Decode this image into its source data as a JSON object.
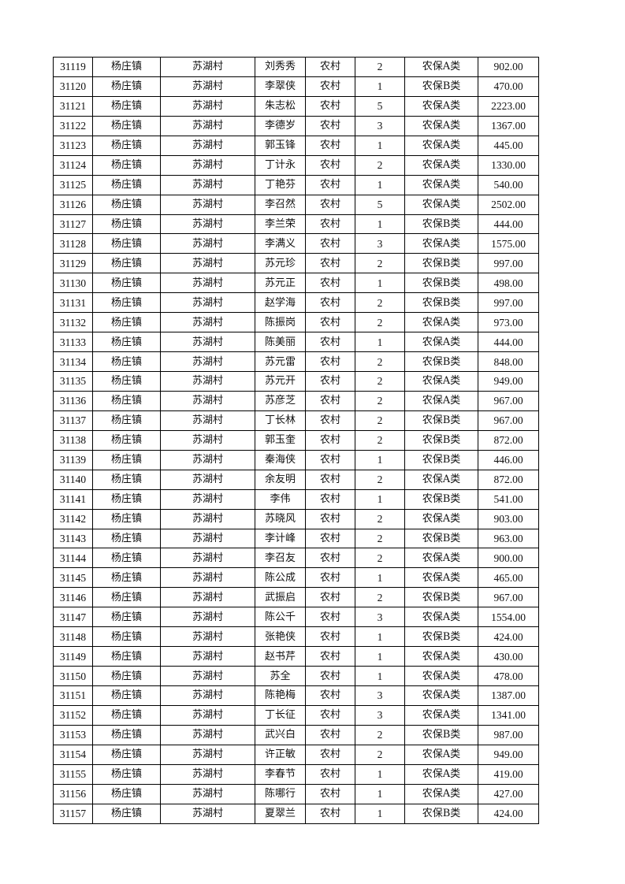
{
  "table": {
    "rows": [
      [
        "31119",
        "杨庄镇",
        "苏湖村",
        "刘秀秀",
        "农村",
        "2",
        "农保A类",
        "902.00"
      ],
      [
        "31120",
        "杨庄镇",
        "苏湖村",
        "李翠侠",
        "农村",
        "1",
        "农保B类",
        "470.00"
      ],
      [
        "31121",
        "杨庄镇",
        "苏湖村",
        "朱志松",
        "农村",
        "5",
        "农保A类",
        "2223.00"
      ],
      [
        "31122",
        "杨庄镇",
        "苏湖村",
        "李德岁",
        "农村",
        "3",
        "农保A类",
        "1367.00"
      ],
      [
        "31123",
        "杨庄镇",
        "苏湖村",
        "郭玉锋",
        "农村",
        "1",
        "农保A类",
        "445.00"
      ],
      [
        "31124",
        "杨庄镇",
        "苏湖村",
        "丁计永",
        "农村",
        "2",
        "农保A类",
        "1330.00"
      ],
      [
        "31125",
        "杨庄镇",
        "苏湖村",
        "丁艳芬",
        "农村",
        "1",
        "农保A类",
        "540.00"
      ],
      [
        "31126",
        "杨庄镇",
        "苏湖村",
        "李召然",
        "农村",
        "5",
        "农保A类",
        "2502.00"
      ],
      [
        "31127",
        "杨庄镇",
        "苏湖村",
        "李兰荣",
        "农村",
        "1",
        "农保B类",
        "444.00"
      ],
      [
        "31128",
        "杨庄镇",
        "苏湖村",
        "李满义",
        "农村",
        "3",
        "农保A类",
        "1575.00"
      ],
      [
        "31129",
        "杨庄镇",
        "苏湖村",
        "苏元珍",
        "农村",
        "2",
        "农保B类",
        "997.00"
      ],
      [
        "31130",
        "杨庄镇",
        "苏湖村",
        "苏元正",
        "农村",
        "1",
        "农保B类",
        "498.00"
      ],
      [
        "31131",
        "杨庄镇",
        "苏湖村",
        "赵学海",
        "农村",
        "2",
        "农保B类",
        "997.00"
      ],
      [
        "31132",
        "杨庄镇",
        "苏湖村",
        "陈振岗",
        "农村",
        "2",
        "农保A类",
        "973.00"
      ],
      [
        "31133",
        "杨庄镇",
        "苏湖村",
        "陈美丽",
        "农村",
        "1",
        "农保A类",
        "444.00"
      ],
      [
        "31134",
        "杨庄镇",
        "苏湖村",
        "苏元雷",
        "农村",
        "2",
        "农保B类",
        "848.00"
      ],
      [
        "31135",
        "杨庄镇",
        "苏湖村",
        "苏元开",
        "农村",
        "2",
        "农保A类",
        "949.00"
      ],
      [
        "31136",
        "杨庄镇",
        "苏湖村",
        "苏彦芝",
        "农村",
        "2",
        "农保A类",
        "967.00"
      ],
      [
        "31137",
        "杨庄镇",
        "苏湖村",
        "丁长林",
        "农村",
        "2",
        "农保B类",
        "967.00"
      ],
      [
        "31138",
        "杨庄镇",
        "苏湖村",
        "郭玉奎",
        "农村",
        "2",
        "农保B类",
        "872.00"
      ],
      [
        "31139",
        "杨庄镇",
        "苏湖村",
        "秦海侠",
        "农村",
        "1",
        "农保B类",
        "446.00"
      ],
      [
        "31140",
        "杨庄镇",
        "苏湖村",
        "余友明",
        "农村",
        "2",
        "农保A类",
        "872.00"
      ],
      [
        "31141",
        "杨庄镇",
        "苏湖村",
        "李伟",
        "农村",
        "1",
        "农保B类",
        "541.00"
      ],
      [
        "31142",
        "杨庄镇",
        "苏湖村",
        "苏晓风",
        "农村",
        "2",
        "农保A类",
        "903.00"
      ],
      [
        "31143",
        "杨庄镇",
        "苏湖村",
        "李计峰",
        "农村",
        "2",
        "农保B类",
        "963.00"
      ],
      [
        "31144",
        "杨庄镇",
        "苏湖村",
        "李召友",
        "农村",
        "2",
        "农保A类",
        "900.00"
      ],
      [
        "31145",
        "杨庄镇",
        "苏湖村",
        "陈公成",
        "农村",
        "1",
        "农保A类",
        "465.00"
      ],
      [
        "31146",
        "杨庄镇",
        "苏湖村",
        "武振启",
        "农村",
        "2",
        "农保B类",
        "967.00"
      ],
      [
        "31147",
        "杨庄镇",
        "苏湖村",
        "陈公千",
        "农村",
        "3",
        "农保A类",
        "1554.00"
      ],
      [
        "31148",
        "杨庄镇",
        "苏湖村",
        "张艳侠",
        "农村",
        "1",
        "农保B类",
        "424.00"
      ],
      [
        "31149",
        "杨庄镇",
        "苏湖村",
        "赵书芹",
        "农村",
        "1",
        "农保A类",
        "430.00"
      ],
      [
        "31150",
        "杨庄镇",
        "苏湖村",
        "苏全",
        "农村",
        "1",
        "农保A类",
        "478.00"
      ],
      [
        "31151",
        "杨庄镇",
        "苏湖村",
        "陈艳梅",
        "农村",
        "3",
        "农保A类",
        "1387.00"
      ],
      [
        "31152",
        "杨庄镇",
        "苏湖村",
        "丁长征",
        "农村",
        "3",
        "农保A类",
        "1341.00"
      ],
      [
        "31153",
        "杨庄镇",
        "苏湖村",
        "武兴白",
        "农村",
        "2",
        "农保B类",
        "987.00"
      ],
      [
        "31154",
        "杨庄镇",
        "苏湖村",
        "许正敏",
        "农村",
        "2",
        "农保A类",
        "949.00"
      ],
      [
        "31155",
        "杨庄镇",
        "苏湖村",
        "李春节",
        "农村",
        "1",
        "农保A类",
        "419.00"
      ],
      [
        "31156",
        "杨庄镇",
        "苏湖村",
        "陈哪行",
        "农村",
        "1",
        "农保A类",
        "427.00"
      ],
      [
        "31157",
        "杨庄镇",
        "苏湖村",
        "夏翠兰",
        "农村",
        "1",
        "农保B类",
        "424.00"
      ]
    ]
  }
}
